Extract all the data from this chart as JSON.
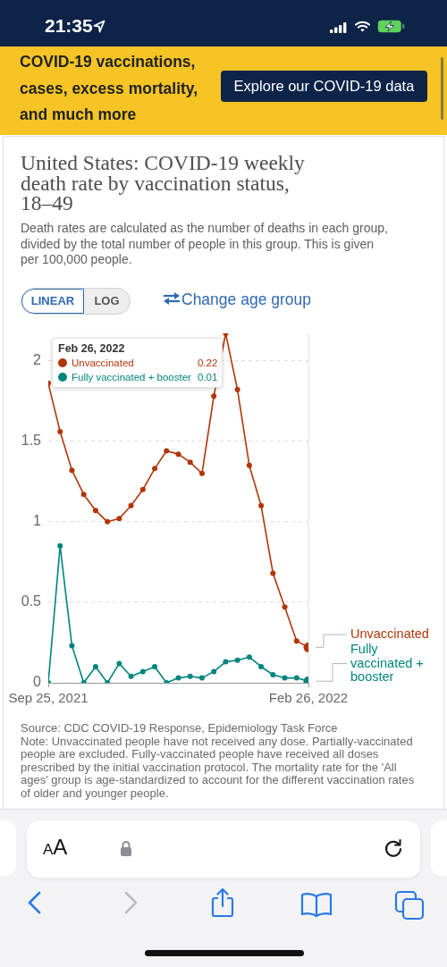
{
  "chart_data": {
    "type": "line",
    "title": "United States: COVID-19 weekly death rate by vaccination status, 18–49",
    "subtitle": "Death rates are calculated as the number of deaths in each group, divided by the total number of people in this group. This is given per 100,000 people.",
    "x": [
      "2021-09-25",
      "2021-10-02",
      "2021-10-09",
      "2021-10-16",
      "2021-10-23",
      "2021-10-30",
      "2021-11-06",
      "2021-11-13",
      "2021-11-20",
      "2021-11-27",
      "2021-12-04",
      "2021-12-11",
      "2021-12-18",
      "2021-12-25",
      "2022-01-01",
      "2022-01-08",
      "2022-01-15",
      "2022-01-22",
      "2022-01-29",
      "2022-02-05",
      "2022-02-12",
      "2022-02-19",
      "2022-02-26"
    ],
    "series": [
      {
        "name": "Unvaccinated",
        "color": "#b13507",
        "values": [
          1.86,
          1.56,
          1.32,
          1.17,
          1.07,
          1.0,
          1.02,
          1.1,
          1.2,
          1.33,
          1.44,
          1.42,
          1.37,
          1.3,
          1.78,
          2.17,
          1.82,
          1.35,
          1.1,
          0.68,
          0.47,
          0.26,
          0.22
        ]
      },
      {
        "name": "Fully vaccinated + booster",
        "color": "#00847e",
        "values": [
          0,
          0.85,
          0.23,
          0,
          0.1,
          0,
          0.12,
          0.04,
          0.07,
          0.1,
          0,
          0.03,
          0.04,
          0.03,
          0.07,
          0.13,
          0.14,
          0.16,
          0.1,
          0.05,
          0.03,
          0.03,
          0.01
        ]
      }
    ],
    "xlim": [
      "2021-09-25",
      "2022-02-26"
    ],
    "xticks": [
      {
        "value": "2021-09-25",
        "label": "Sep 25, 2021"
      },
      {
        "value": "2022-02-26",
        "label": "Feb 26, 2022"
      }
    ],
    "ylim": [
      0,
      2.17
    ],
    "yticks": [
      0,
      0.5,
      1,
      1.5,
      2
    ],
    "grid": "y",
    "legend": "top left",
    "marker": "circle",
    "ref_lines": [
      {
        "axis": "x",
        "value": "2022-02-26",
        "color": "#dddddd"
      }
    ],
    "annotations": [
      "21:35",
      "COVID-19 vaccinations, cases, excess mortality, and much more",
      "Explore our COVID-19 data",
      "LINEAR",
      "LOG",
      "Change age group",
      "Source: CDC COVID-19 Response, Epidemiology Task Force",
      "Note: Unvaccinated people have not received any dose. Partially-vaccinated people are excluded. Fully-vaccinated people have received all doses prescribed by the initial vaccination protocol. The mortality rate for the 'All ages' group is age-standardized to account for the different vaccination rates of older and younger people.",
      "AA",
      "Feb 26, 2022",
      "0.22",
      "0.01"
    ]
  }
}
